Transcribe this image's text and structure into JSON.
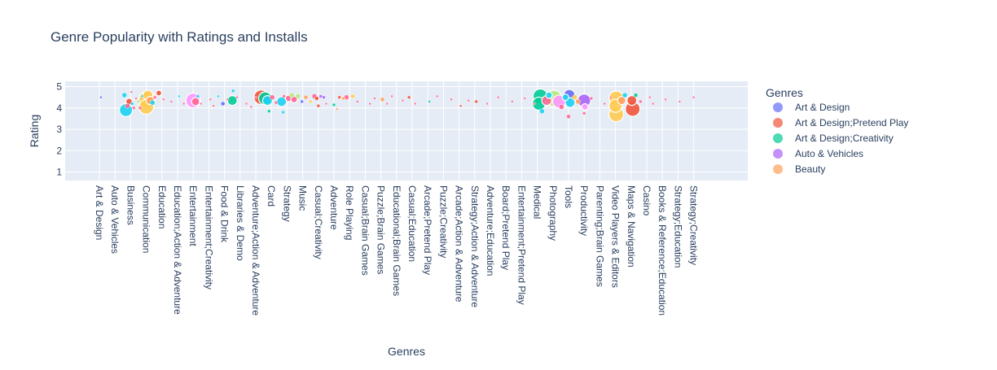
{
  "chart_data": {
    "type": "scatter",
    "title": "Genre Popularity with Ratings and Installs",
    "xlabel": "Genres",
    "ylabel": "Rating",
    "ylim": [
      0.6,
      5.25
    ],
    "yticks": [
      1,
      2,
      3,
      4,
      5
    ],
    "grid": true,
    "legend_title": "Genres",
    "legend_position": "right",
    "categories": [
      "Art & Design",
      "Auto & Vehicles",
      "Business",
      "Communication",
      "Education",
      "Education;Action & Adventure",
      "Entertainment",
      "Entertainment;Creativity",
      "Food & Drink",
      "Libraries & Demo",
      "Adventure;Action & Adventure",
      "Card",
      "Strategy",
      "Music",
      "Casual;Creativity",
      "Adventure",
      "Role Playing",
      "Casual;Brain Games",
      "Puzzle;Brain Games",
      "Educational;Brain Games",
      "Casual;Education",
      "Arcade;Pretend Play",
      "Puzzle;Creativity",
      "Arcade;Action & Adventure",
      "Strategy;Action & Adventure",
      "Adventure;Education",
      "Board;Pretend Play",
      "Entertainment;Pretend Play",
      "Medical",
      "Photography",
      "Tools",
      "Productivity",
      "Parenting;Brain Games",
      "Video Players & Editors",
      "Maps & Navigation",
      "Casino",
      "Books & Reference;Education",
      "Strategy;Education",
      "Strategy;Creativity"
    ],
    "legend": [
      {
        "name": "Art & Design",
        "color": "#636efa"
      },
      {
        "name": "Art & Design;Pretend Play",
        "color": "#EF553B"
      },
      {
        "name": "Art & Design;Creativity",
        "color": "#00cc96"
      },
      {
        "name": "Auto & Vehicles",
        "color": "#ab63fa"
      },
      {
        "name": "Beauty",
        "color": "#FFA15A"
      }
    ],
    "palette": [
      "#636efa",
      "#EF553B",
      "#00cc96",
      "#ab63fa",
      "#FFA15A",
      "#19d3f3",
      "#FF6692",
      "#B6E880",
      "#FF97FF",
      "#FECB52"
    ],
    "points": [
      {
        "x": 0.1,
        "y": 4.5,
        "s": 1.5,
        "c": 0
      },
      {
        "x": 1.6,
        "y": 4.6,
        "s": 3,
        "c": 5
      },
      {
        "x": 1.9,
        "y": 4.3,
        "s": 4,
        "c": 1
      },
      {
        "x": 1.8,
        "y": 4.1,
        "s": 3,
        "c": 6
      },
      {
        "x": 1.7,
        "y": 3.9,
        "s": 8,
        "c": 5
      },
      {
        "x": 2.05,
        "y": 4.75,
        "s": 1.5,
        "c": 6
      },
      {
        "x": 2.1,
        "y": 4.2,
        "s": 2,
        "c": 5
      },
      {
        "x": 2.2,
        "y": 4.0,
        "s": 2,
        "c": 6
      },
      {
        "x": 2.35,
        "y": 4.45,
        "s": 1.5,
        "c": 6
      },
      {
        "x": 2.5,
        "y": 4.3,
        "s": 2,
        "c": 7
      },
      {
        "x": 2.6,
        "y": 4.0,
        "s": 2,
        "c": 6
      },
      {
        "x": 2.75,
        "y": 4.55,
        "s": 1.5,
        "c": 5
      },
      {
        "x": 3.05,
        "y": 4.4,
        "s": 10,
        "c": 9
      },
      {
        "x": 3.0,
        "y": 4.05,
        "s": 9,
        "c": 9
      },
      {
        "x": 3.1,
        "y": 4.6,
        "s": 6,
        "c": 9
      },
      {
        "x": 3.25,
        "y": 4.35,
        "s": 5,
        "c": 4
      },
      {
        "x": 3.4,
        "y": 4.25,
        "s": 3,
        "c": 5
      },
      {
        "x": 3.55,
        "y": 4.5,
        "s": 2,
        "c": 6
      },
      {
        "x": 3.8,
        "y": 4.7,
        "s": 3.5,
        "c": 1
      },
      {
        "x": 4.1,
        "y": 4.4,
        "s": 1.5,
        "c": 6
      },
      {
        "x": 4.6,
        "y": 4.3,
        "s": 1.5,
        "c": 6
      },
      {
        "x": 5.1,
        "y": 4.55,
        "s": 1.5,
        "c": 5
      },
      {
        "x": 5.4,
        "y": 4.2,
        "s": 1.5,
        "c": 6
      },
      {
        "x": 6.0,
        "y": 4.35,
        "s": 9,
        "c": 8
      },
      {
        "x": 6.15,
        "y": 4.3,
        "s": 5,
        "c": 6
      },
      {
        "x": 6.3,
        "y": 4.55,
        "s": 2,
        "c": 5
      },
      {
        "x": 6.5,
        "y": 4.2,
        "s": 1.5,
        "c": 6
      },
      {
        "x": 7.1,
        "y": 4.4,
        "s": 1.5,
        "c": 6
      },
      {
        "x": 7.3,
        "y": 4.1,
        "s": 1.5,
        "c": 6
      },
      {
        "x": 7.6,
        "y": 4.55,
        "s": 1.5,
        "c": 5
      },
      {
        "x": 7.9,
        "y": 4.2,
        "s": 2.5,
        "c": 0
      },
      {
        "x": 8.2,
        "y": 4.4,
        "s": 1.5,
        "c": 6
      },
      {
        "x": 8.5,
        "y": 4.35,
        "s": 6,
        "c": 2
      },
      {
        "x": 8.55,
        "y": 4.8,
        "s": 2,
        "c": 5
      },
      {
        "x": 8.8,
        "y": 4.5,
        "s": 1.5,
        "c": 6
      },
      {
        "x": 9.4,
        "y": 4.2,
        "s": 1.5,
        "c": 6
      },
      {
        "x": 9.7,
        "y": 4.05,
        "s": 1.5,
        "c": 6
      },
      {
        "x": 10.0,
        "y": 4.5,
        "s": 1.5,
        "c": 6
      },
      {
        "x": 10.35,
        "y": 4.5,
        "s": 9,
        "c": 1
      },
      {
        "x": 10.6,
        "y": 4.45,
        "s": 8,
        "c": 2
      },
      {
        "x": 10.75,
        "y": 4.35,
        "s": 6,
        "c": 5
      },
      {
        "x": 10.85,
        "y": 3.85,
        "s": 2,
        "c": 2
      },
      {
        "x": 11.05,
        "y": 4.5,
        "s": 3,
        "c": 6
      },
      {
        "x": 11.3,
        "y": 4.25,
        "s": 2,
        "c": 6
      },
      {
        "x": 11.65,
        "y": 4.3,
        "s": 6,
        "c": 5
      },
      {
        "x": 11.8,
        "y": 4.55,
        "s": 2,
        "c": 6
      },
      {
        "x": 11.75,
        "y": 3.8,
        "s": 2,
        "c": 5
      },
      {
        "x": 12.1,
        "y": 4.45,
        "s": 4,
        "c": 6
      },
      {
        "x": 12.3,
        "y": 4.6,
        "s": 3,
        "c": 7
      },
      {
        "x": 12.45,
        "y": 4.4,
        "s": 4,
        "c": 6
      },
      {
        "x": 12.7,
        "y": 4.55,
        "s": 3,
        "c": 7
      },
      {
        "x": 12.95,
        "y": 4.3,
        "s": 2,
        "c": 0
      },
      {
        "x": 13.2,
        "y": 4.5,
        "s": 2.5,
        "c": 4
      },
      {
        "x": 13.5,
        "y": 4.3,
        "s": 2,
        "c": 9
      },
      {
        "x": 13.75,
        "y": 4.55,
        "s": 3,
        "c": 6
      },
      {
        "x": 13.9,
        "y": 4.45,
        "s": 2.5,
        "c": 1
      },
      {
        "x": 14.0,
        "y": 4.1,
        "s": 2,
        "c": 1
      },
      {
        "x": 14.15,
        "y": 4.55,
        "s": 2,
        "c": 3
      },
      {
        "x": 14.35,
        "y": 4.5,
        "s": 2,
        "c": 3
      },
      {
        "x": 14.5,
        "y": 4.2,
        "s": 1.5,
        "c": 6
      },
      {
        "x": 15.0,
        "y": 4.15,
        "s": 2,
        "c": 2
      },
      {
        "x": 15.2,
        "y": 3.95,
        "s": 1.5,
        "c": 4
      },
      {
        "x": 15.35,
        "y": 4.5,
        "s": 2,
        "c": 1
      },
      {
        "x": 15.6,
        "y": 4.45,
        "s": 2,
        "c": 4
      },
      {
        "x": 15.8,
        "y": 4.5,
        "s": 3,
        "c": 6
      },
      {
        "x": 16.2,
        "y": 4.55,
        "s": 2.5,
        "c": 9
      },
      {
        "x": 16.5,
        "y": 4.3,
        "s": 1.5,
        "c": 6
      },
      {
        "x": 17.3,
        "y": 4.2,
        "s": 1.5,
        "c": 6
      },
      {
        "x": 17.6,
        "y": 4.45,
        "s": 1.5,
        "c": 6
      },
      {
        "x": 18.1,
        "y": 4.4,
        "s": 2.5,
        "c": 4
      },
      {
        "x": 18.4,
        "y": 4.2,
        "s": 1.5,
        "c": 6
      },
      {
        "x": 18.7,
        "y": 4.55,
        "s": 1.5,
        "c": 6
      },
      {
        "x": 19.4,
        "y": 4.35,
        "s": 1.5,
        "c": 6
      },
      {
        "x": 19.8,
        "y": 4.5,
        "s": 2,
        "c": 1
      },
      {
        "x": 20.2,
        "y": 4.2,
        "s": 1.5,
        "c": 6
      },
      {
        "x": 21.1,
        "y": 4.3,
        "s": 1.5,
        "c": 2
      },
      {
        "x": 21.6,
        "y": 4.55,
        "s": 1.5,
        "c": 6
      },
      {
        "x": 22.5,
        "y": 4.4,
        "s": 1.5,
        "c": 6
      },
      {
        "x": 23.1,
        "y": 4.1,
        "s": 1.5,
        "c": 1
      },
      {
        "x": 23.6,
        "y": 4.35,
        "s": 1.5,
        "c": 6
      },
      {
        "x": 24.1,
        "y": 4.3,
        "s": 2,
        "c": 1
      },
      {
        "x": 24.8,
        "y": 4.2,
        "s": 1.5,
        "c": 6
      },
      {
        "x": 25.5,
        "y": 4.5,
        "s": 1.5,
        "c": 6
      },
      {
        "x": 26.4,
        "y": 4.3,
        "s": 1.5,
        "c": 6
      },
      {
        "x": 27.2,
        "y": 4.45,
        "s": 1.5,
        "c": 6
      },
      {
        "x": 27.8,
        "y": 4.2,
        "s": 1.5,
        "c": 6
      },
      {
        "x": 28.2,
        "y": 4.55,
        "s": 9,
        "c": 2
      },
      {
        "x": 28.1,
        "y": 4.2,
        "s": 8,
        "c": 2
      },
      {
        "x": 28.3,
        "y": 3.85,
        "s": 3,
        "c": 5
      },
      {
        "x": 28.6,
        "y": 4.35,
        "s": 6,
        "c": 6
      },
      {
        "x": 28.75,
        "y": 4.6,
        "s": 4,
        "c": 5
      },
      {
        "x": 29.05,
        "y": 4.45,
        "s": 10,
        "c": 7
      },
      {
        "x": 29.4,
        "y": 4.3,
        "s": 8,
        "c": 8
      },
      {
        "x": 29.55,
        "y": 4.05,
        "s": 3,
        "c": 6
      },
      {
        "x": 29.8,
        "y": 4.5,
        "s": 4,
        "c": 5
      },
      {
        "x": 30.05,
        "y": 4.6,
        "s": 7,
        "c": 0
      },
      {
        "x": 30.1,
        "y": 4.25,
        "s": 6,
        "c": 5
      },
      {
        "x": 30.0,
        "y": 3.6,
        "s": 2.5,
        "c": 6
      },
      {
        "x": 30.4,
        "y": 4.5,
        "s": 3,
        "c": 9
      },
      {
        "x": 30.6,
        "y": 4.3,
        "s": 3,
        "c": 4
      },
      {
        "x": 31.0,
        "y": 4.35,
        "s": 8,
        "c": 3
      },
      {
        "x": 31.05,
        "y": 4.05,
        "s": 4,
        "c": 8
      },
      {
        "x": 31.0,
        "y": 3.75,
        "s": 2,
        "c": 6
      },
      {
        "x": 31.45,
        "y": 4.45,
        "s": 2,
        "c": 6
      },
      {
        "x": 32.3,
        "y": 4.2,
        "s": 1.5,
        "c": 6
      },
      {
        "x": 32.7,
        "y": 4.5,
        "s": 1.5,
        "c": 6
      },
      {
        "x": 33.05,
        "y": 4.45,
        "s": 9,
        "c": 9
      },
      {
        "x": 33.0,
        "y": 4.1,
        "s": 8,
        "c": 9
      },
      {
        "x": 33.05,
        "y": 3.7,
        "s": 9,
        "c": 9
      },
      {
        "x": 33.4,
        "y": 4.35,
        "s": 5,
        "c": 4
      },
      {
        "x": 33.6,
        "y": 4.6,
        "s": 3,
        "c": 5
      },
      {
        "x": 34.05,
        "y": 4.35,
        "s": 6,
        "c": 1
      },
      {
        "x": 34.1,
        "y": 3.95,
        "s": 9,
        "c": 1
      },
      {
        "x": 34.3,
        "y": 4.6,
        "s": 2.5,
        "c": 2
      },
      {
        "x": 34.6,
        "y": 4.3,
        "s": 2,
        "c": 6
      },
      {
        "x": 35.2,
        "y": 4.5,
        "s": 1.5,
        "c": 6
      },
      {
        "x": 35.4,
        "y": 4.2,
        "s": 1.5,
        "c": 6
      },
      {
        "x": 36.2,
        "y": 4.4,
        "s": 1.5,
        "c": 6
      },
      {
        "x": 37.1,
        "y": 4.3,
        "s": 1.5,
        "c": 6
      },
      {
        "x": 38.0,
        "y": 4.5,
        "s": 1.5,
        "c": 6
      }
    ]
  }
}
